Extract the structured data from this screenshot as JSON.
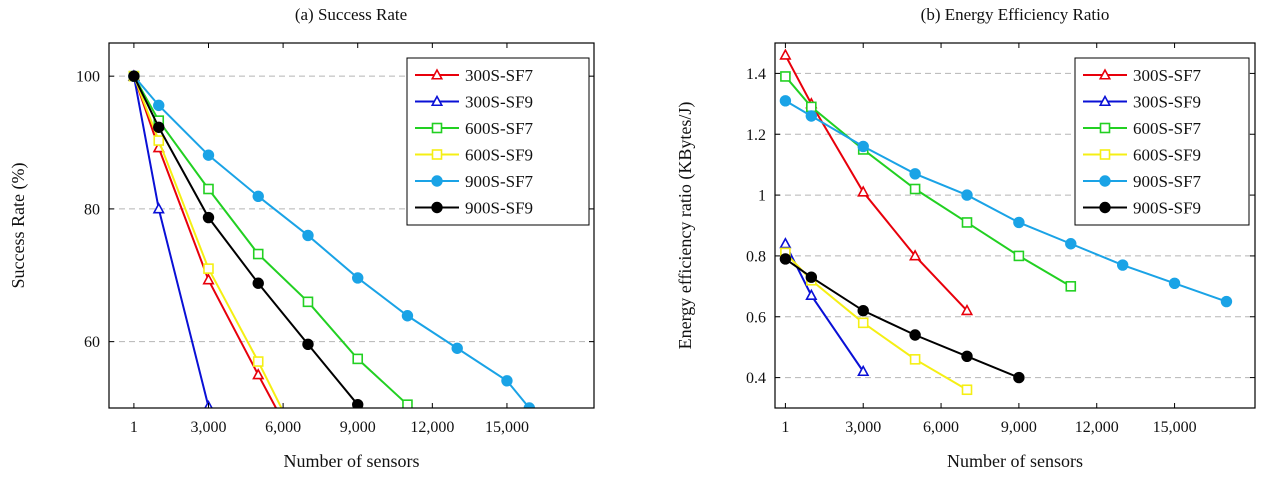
{
  "chart_data": [
    {
      "type": "line",
      "title": "(a) Success Rate",
      "xlabel": "Number of sensors",
      "ylabel": "Success Rate (%)",
      "xlim": [
        -1000,
        18500
      ],
      "ylim": [
        50,
        105
      ],
      "xticks": [
        1,
        3000,
        6000,
        9000,
        12000,
        15000
      ],
      "xtick_labels": [
        "1",
        "3,000",
        "6,000",
        "9,000",
        "12,000",
        "15,000"
      ],
      "yticks": [
        60,
        80,
        100
      ],
      "ytick_labels": [
        "60",
        "80",
        "100"
      ],
      "grid": "horizontal dashed",
      "legend_position": "top-right",
      "series": [
        {
          "name": "300S-SF7",
          "color": "#e8000b",
          "marker": "triangle",
          "x": [
            1,
            1000,
            3000,
            5000,
            6000
          ],
          "y": [
            100,
            89.2,
            69.3,
            55,
            48
          ]
        },
        {
          "name": "300S-SF9",
          "color": "#0a10d6",
          "marker": "triangle",
          "x": [
            1,
            1000,
            3000,
            3200
          ],
          "y": [
            100,
            80,
            50.2,
            48
          ]
        },
        {
          "name": "600S-SF7",
          "color": "#22d022",
          "marker": "square",
          "x": [
            1,
            1000,
            3000,
            5000,
            7000,
            9000,
            11000
          ],
          "y": [
            100,
            93.3,
            83,
            73.2,
            66,
            57.4,
            50.5
          ]
        },
        {
          "name": "600S-SF9",
          "color": "#f5ef14",
          "marker": "square",
          "x": [
            1,
            1000,
            3000,
            5000,
            6200
          ],
          "y": [
            100,
            90.3,
            71,
            57,
            48
          ]
        },
        {
          "name": "900S-SF7",
          "color": "#1aa3e6",
          "marker": "circle",
          "x": [
            1,
            1000,
            3000,
            5000,
            7000,
            9000,
            11000,
            13000,
            15000,
            15900
          ],
          "y": [
            100,
            95.6,
            88.1,
            81.9,
            76,
            69.6,
            63.9,
            59,
            54.1,
            50
          ]
        },
        {
          "name": "900S-SF9",
          "color": "#000000",
          "marker": "circle",
          "x": [
            1,
            1000,
            3000,
            5000,
            7000,
            9000
          ],
          "y": [
            100,
            92.3,
            78.7,
            68.8,
            59.6,
            50.5
          ]
        }
      ]
    },
    {
      "type": "line",
      "title": "(b) Energy Efficiency Ratio",
      "xlabel": "Number of sensors",
      "ylabel": "Energy efficiency ratio (KBytes/J)",
      "xlim": [
        -400,
        18100
      ],
      "ylim": [
        0.3,
        1.5
      ],
      "xticks": [
        1,
        3000,
        6000,
        9000,
        12000,
        15000
      ],
      "xtick_labels": [
        "1",
        "3,000",
        "6,000",
        "9,000",
        "12,000",
        "15,000"
      ],
      "yticks": [
        0.4,
        0.6,
        0.8,
        1.0,
        1.2,
        1.4
      ],
      "ytick_labels": [
        "0.4",
        "0.6",
        "0.8",
        "1",
        "1.2",
        "1.4"
      ],
      "grid": "horizontal dashed",
      "legend_position": "top-right",
      "series": [
        {
          "name": "300S-SF7",
          "color": "#e8000b",
          "marker": "triangle",
          "x": [
            1,
            1000,
            3000,
            5000,
            7000
          ],
          "y": [
            1.46,
            1.3,
            1.01,
            0.8,
            0.62
          ]
        },
        {
          "name": "300S-SF9",
          "color": "#0a10d6",
          "marker": "triangle",
          "x": [
            1,
            1000,
            3000
          ],
          "y": [
            0.84,
            0.67,
            0.42
          ]
        },
        {
          "name": "600S-SF7",
          "color": "#22d022",
          "marker": "square",
          "x": [
            1,
            1000,
            3000,
            5000,
            7000,
            9000,
            11000
          ],
          "y": [
            1.39,
            1.29,
            1.15,
            1.02,
            0.91,
            0.8,
            0.7
          ]
        },
        {
          "name": "600S-SF9",
          "color": "#f5ef14",
          "marker": "square",
          "x": [
            1,
            1000,
            3000,
            5000,
            7000
          ],
          "y": [
            0.81,
            0.72,
            0.58,
            0.46,
            0.36
          ]
        },
        {
          "name": "900S-SF7",
          "color": "#1aa3e6",
          "marker": "circle",
          "x": [
            1,
            1000,
            3000,
            5000,
            7000,
            9000,
            11000,
            13000,
            15000,
            17000
          ],
          "y": [
            1.31,
            1.26,
            1.16,
            1.07,
            1.0,
            0.91,
            0.84,
            0.77,
            0.71,
            0.65
          ]
        },
        {
          "name": "900S-SF9",
          "color": "#000000",
          "marker": "circle",
          "x": [
            1,
            1000,
            3000,
            5000,
            7000,
            9000
          ],
          "y": [
            0.79,
            0.73,
            0.62,
            0.54,
            0.47,
            0.4
          ]
        }
      ]
    }
  ]
}
